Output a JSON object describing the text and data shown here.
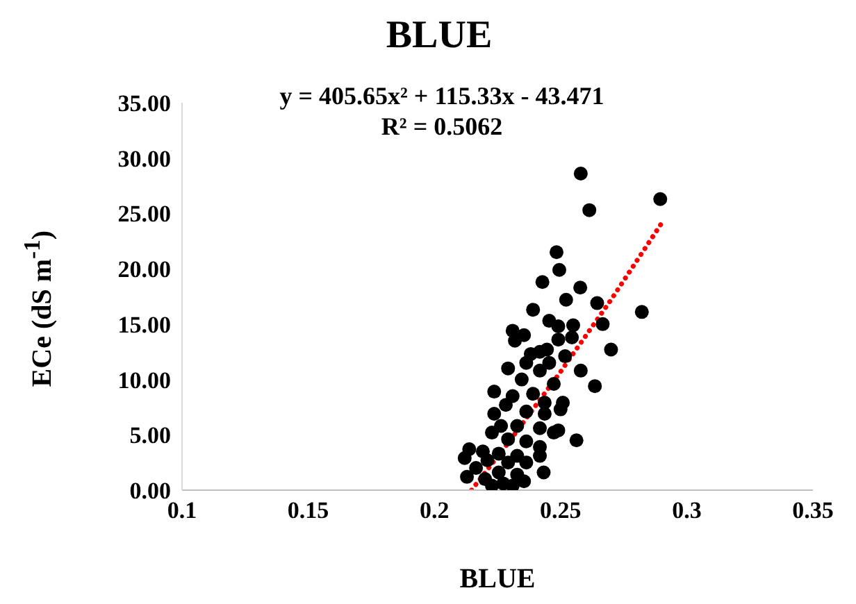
{
  "chart_data": {
    "type": "scatter",
    "title": "BLUE",
    "xlabel": "BLUE",
    "ylabel": "ECe (dS m$^{-1}$)",
    "annotations": [
      "y = 405.65x² + 115.33x - 43.471",
      "R² = 0.5062"
    ],
    "xlim": [
      0.1,
      0.35
    ],
    "xticks": [
      0.1,
      0.15,
      0.2,
      0.25,
      0.3,
      0.35
    ],
    "ylim": [
      0,
      35
    ],
    "yticks": [
      {
        "value": 0,
        "label": "0.00"
      },
      {
        "value": 5,
        "label": "5.00"
      },
      {
        "value": 10,
        "label": "10.00"
      },
      {
        "value": 15,
        "label": "15.00"
      },
      {
        "value": 20,
        "label": "20.00"
      },
      {
        "value": 25,
        "label": "25.00"
      },
      {
        "value": 30,
        "label": "30.00"
      },
      {
        "value": 35,
        "label": "35.00"
      }
    ],
    "series": [
      {
        "color": "#000000",
        "marker": "circle",
        "x": [
          0.258,
          0.2895,
          0.2614,
          0.2484,
          0.2495,
          0.2428,
          0.2578,
          0.2522,
          0.2645,
          0.2822,
          0.2667,
          0.255,
          0.27,
          0.2636,
          0.2563,
          0.2433,
          0.258,
          0.2391,
          0.2455,
          0.231,
          0.2355,
          0.2491,
          0.2319,
          0.2545,
          0.2491,
          0.2446,
          0.2382,
          0.2518,
          0.2292,
          0.2418,
          0.2455,
          0.2346,
          0.2473,
          0.2237,
          0.231,
          0.2391,
          0.2509,
          0.2283,
          0.2237,
          0.2364,
          0.2437,
          0.25,
          0.2264,
          0.2328,
          0.2418,
          0.2473,
          0.2228,
          0.2292,
          0.2364,
          0.2418,
          0.2138,
          0.2192,
          0.2255,
          0.2328,
          0.212,
          0.221,
          0.2292,
          0.2364,
          0.2165,
          0.2255,
          0.2328,
          0.2129,
          0.2201,
          0.2273,
          0.2355,
          0.2228,
          0.231,
          0.2418,
          0.2491,
          0.2437,
          0.2364,
          0.2418
        ],
        "values": [
          28.6,
          26.3,
          25.3,
          21.5,
          19.9,
          18.8,
          18.3,
          17.2,
          16.9,
          16.1,
          15.0,
          14.9,
          12.7,
          9.4,
          4.5,
          1.6,
          10.8,
          16.3,
          15.3,
          14.4,
          14.0,
          14.8,
          13.5,
          13.8,
          13.6,
          12.7,
          12.3,
          12.1,
          11.0,
          10.8,
          11.5,
          10.0,
          9.6,
          8.9,
          8.5,
          8.7,
          7.9,
          7.7,
          6.9,
          7.1,
          6.9,
          7.3,
          5.8,
          5.8,
          5.6,
          5.2,
          5.2,
          4.6,
          4.4,
          3.9,
          3.7,
          3.5,
          3.3,
          3.1,
          2.9,
          2.7,
          2.5,
          2.5,
          2.0,
          1.6,
          1.4,
          1.2,
          1.0,
          0.6,
          0.8,
          0.4,
          0.4,
          3.1,
          5.4,
          7.9,
          11.5,
          12.5
        ]
      },
      {
        "type": "line",
        "color": "#ff0000",
        "marker": "none",
        "line_style": "dotted",
        "x": [
          0.2147,
          0.23,
          0.25,
          0.27,
          0.29
        ],
        "values": [
          0,
          4.5,
          10.7,
          17.2,
          24.1
        ]
      }
    ]
  }
}
